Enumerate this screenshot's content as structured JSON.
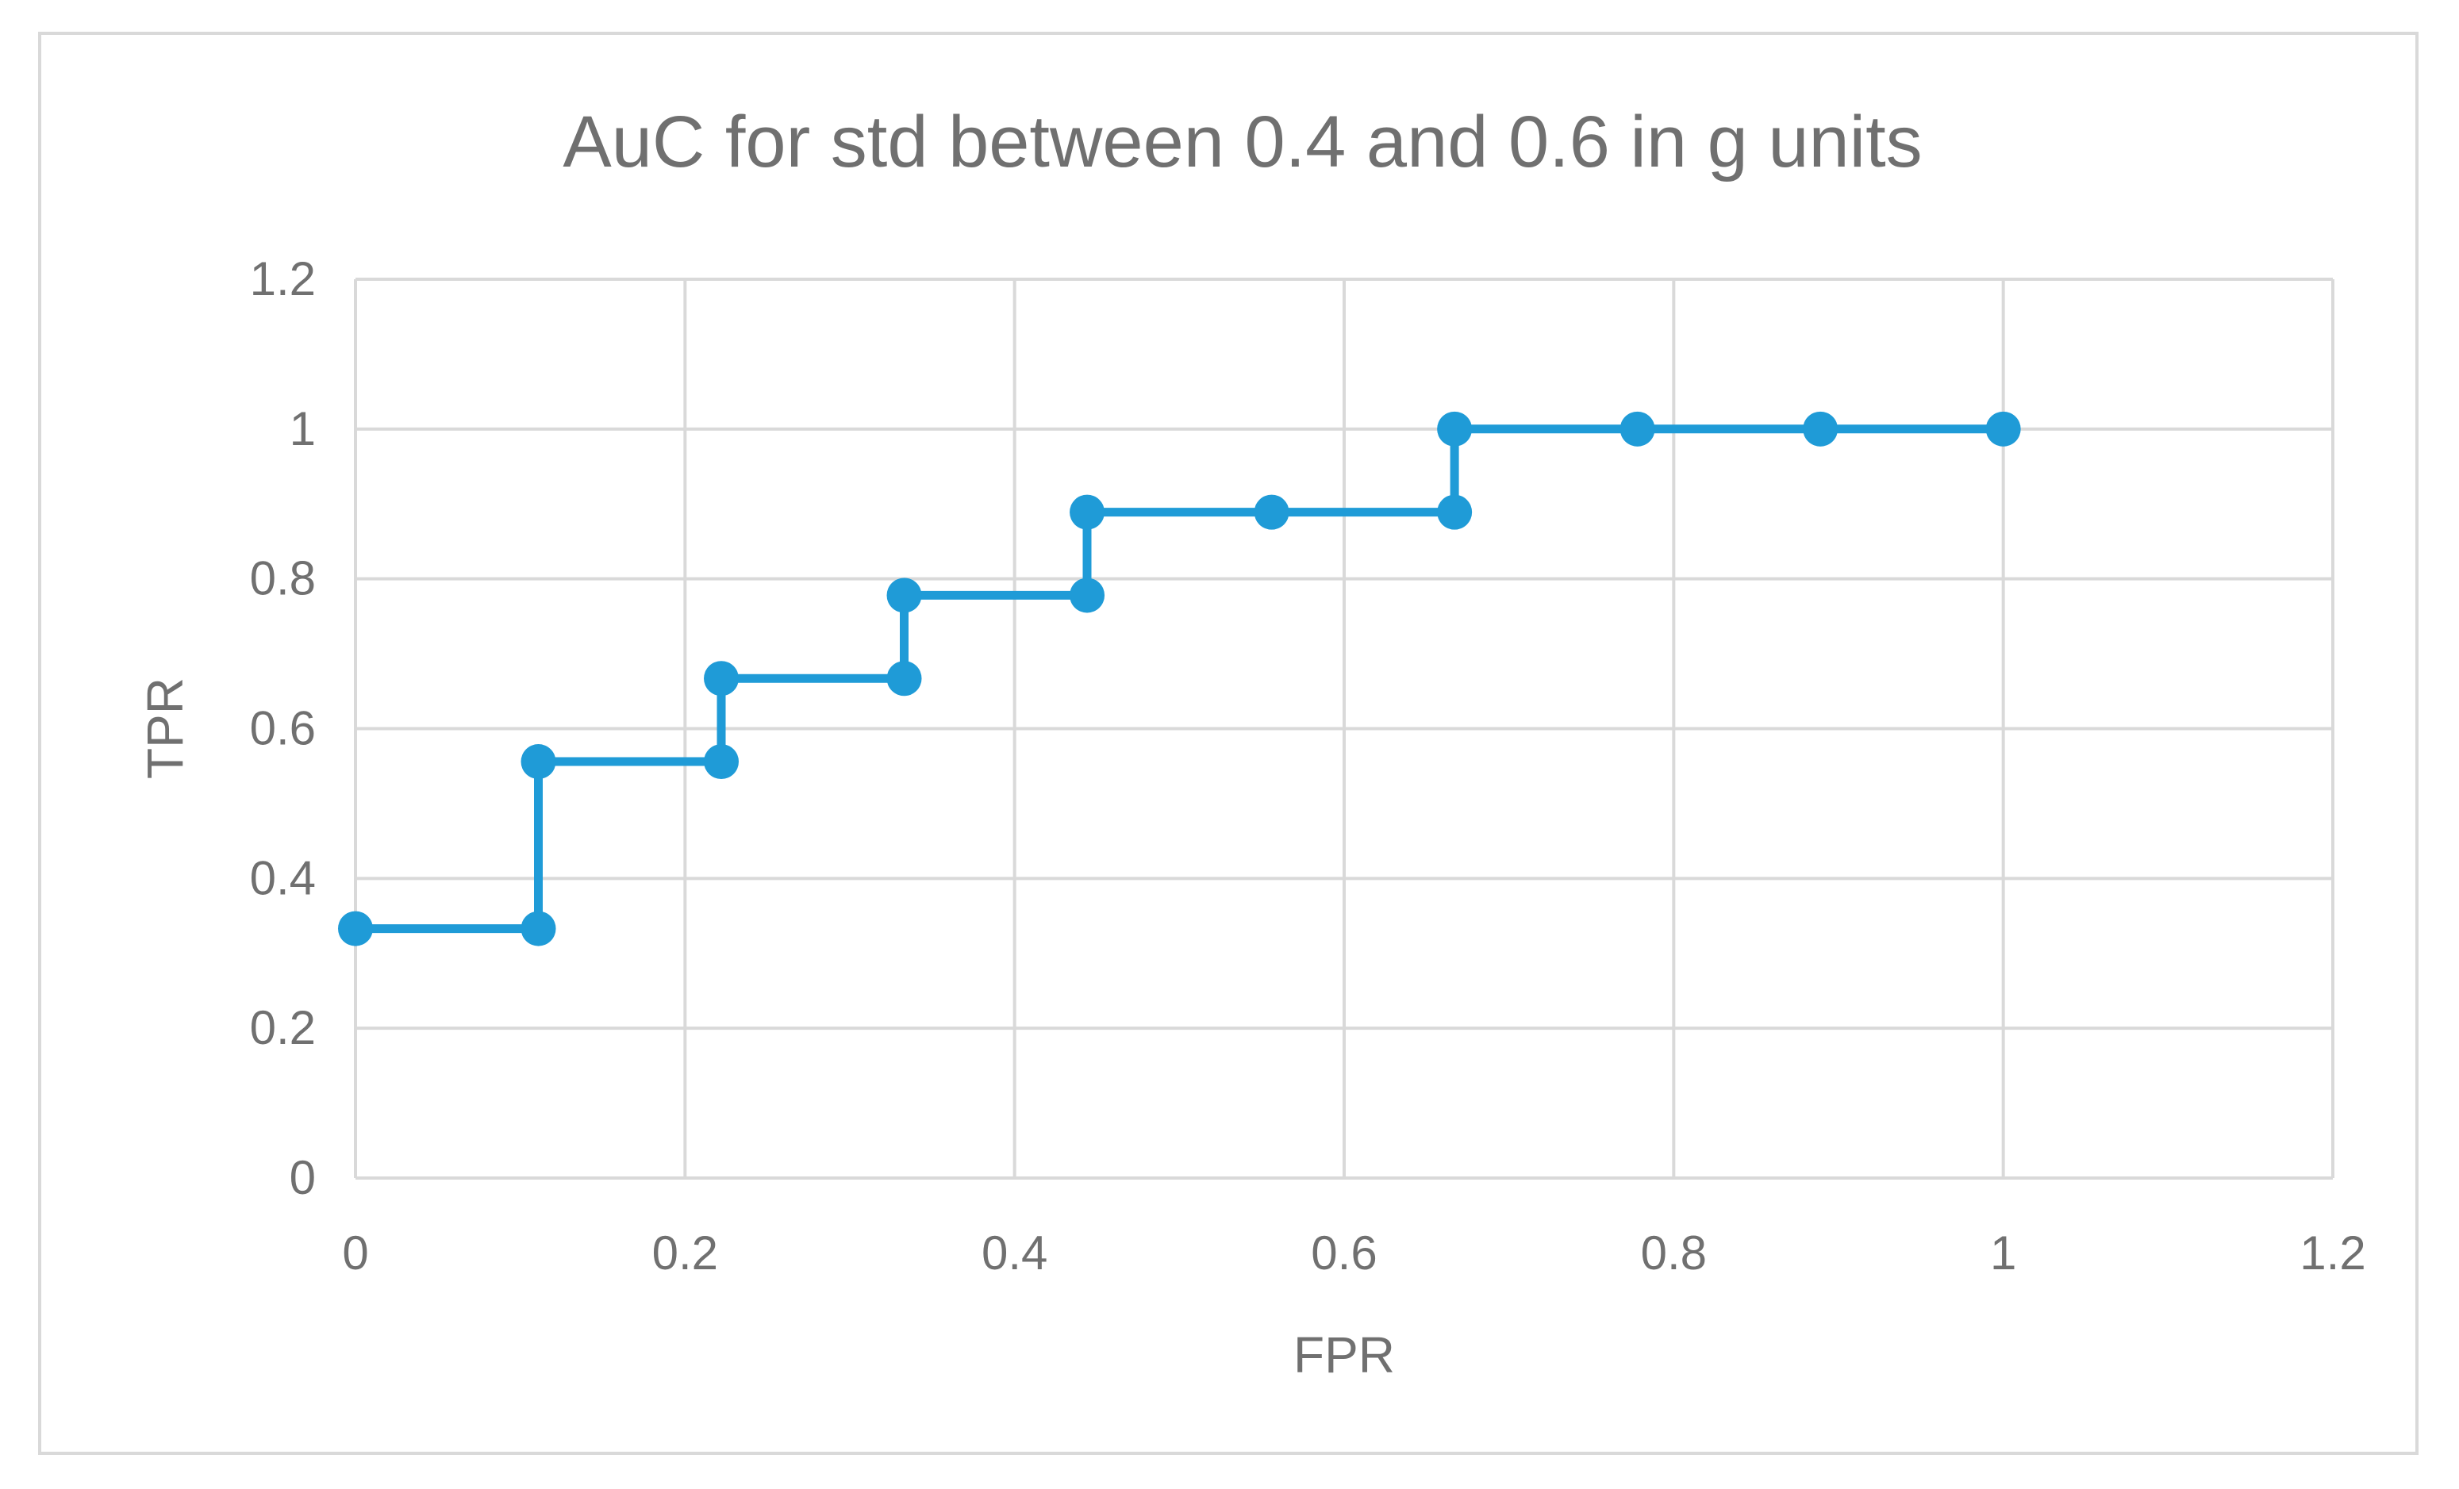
{
  "chart_data": {
    "type": "line",
    "title": "AuC for std between 0.4 and 0.6 in g units",
    "xlabel": "FPR",
    "ylabel": "TPR",
    "xlim": [
      0,
      1.2
    ],
    "ylim": [
      0,
      1.2
    ],
    "x_ticks": [
      "0",
      "0.2",
      "0.4",
      "0.6",
      "0.8",
      "1",
      "1.2"
    ],
    "y_ticks": [
      "0",
      "0.2",
      "0.4",
      "0.6",
      "0.8",
      "1",
      "1.2"
    ],
    "grid": true,
    "legend": "none",
    "line_color": "#1f9bd7",
    "series": [
      {
        "x": [
          0,
          0.111,
          0.111,
          0.222,
          0.222,
          0.333,
          0.333,
          0.444,
          0.444,
          0.556,
          0.667,
          0.667,
          0.778,
          0.889,
          1.0
        ],
        "y": [
          0.333,
          0.333,
          0.556,
          0.556,
          0.667,
          0.667,
          0.778,
          0.778,
          0.889,
          0.889,
          0.889,
          1.0,
          1.0,
          1.0,
          1.0
        ]
      }
    ]
  }
}
